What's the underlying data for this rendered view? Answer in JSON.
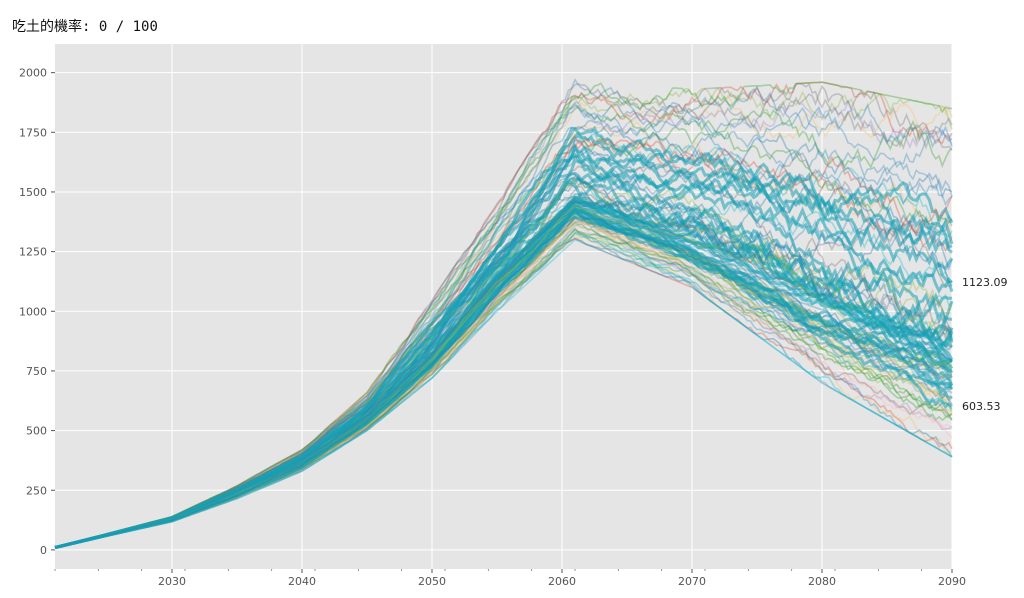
{
  "header": {
    "label": "吃土的機率:",
    "value": "0 / 100"
  },
  "chart_data": {
    "type": "line",
    "title": "",
    "xlabel": "",
    "ylabel": "",
    "xlim": [
      2021,
      2090
    ],
    "ylim": [
      -80,
      2120
    ],
    "x_ticks": [
      2030,
      2040,
      2050,
      2060,
      2070,
      2080,
      2090
    ],
    "y_ticks": [
      0,
      250,
      500,
      750,
      1000,
      1250,
      1500,
      1750,
      2000
    ],
    "grid": true,
    "background": "#e5e5e5",
    "grid_color": "#ffffff",
    "num_series": 100,
    "series_band": [
      {
        "x": 2021,
        "low": 10,
        "mid": 10,
        "high": 10
      },
      {
        "x": 2030,
        "low": 118,
        "mid": 128,
        "high": 140
      },
      {
        "x": 2035,
        "low": 215,
        "mid": 240,
        "high": 270
      },
      {
        "x": 2040,
        "low": 330,
        "mid": 370,
        "high": 420
      },
      {
        "x": 2045,
        "low": 500,
        "mid": 560,
        "high": 660
      },
      {
        "x": 2050,
        "low": 720,
        "mid": 820,
        "high": 1050
      },
      {
        "x": 2055,
        "low": 1000,
        "mid": 1150,
        "high": 1450
      },
      {
        "x": 2061,
        "low": 1300,
        "mid": 1480,
        "high": 1970
      },
      {
        "x": 2070,
        "low": 1100,
        "mid": 1320,
        "high": 1930
      },
      {
        "x": 2080,
        "low": 700,
        "mid": 1080,
        "high": 1960
      },
      {
        "x": 2090,
        "low": 390,
        "mid": 870,
        "high": 1850
      }
    ],
    "annotations": [
      {
        "x": 2090,
        "y": 1123.09,
        "text": "1123.09"
      },
      {
        "x": 2090,
        "y": 603.53,
        "text": "603.53"
      }
    ],
    "colors": [
      "#e24a33",
      "#348abd",
      "#988ed5",
      "#777777",
      "#fbc15e",
      "#8eba42",
      "#ffb5b8",
      "#17becf",
      "#2ca02c",
      "#1f77b4"
    ]
  }
}
